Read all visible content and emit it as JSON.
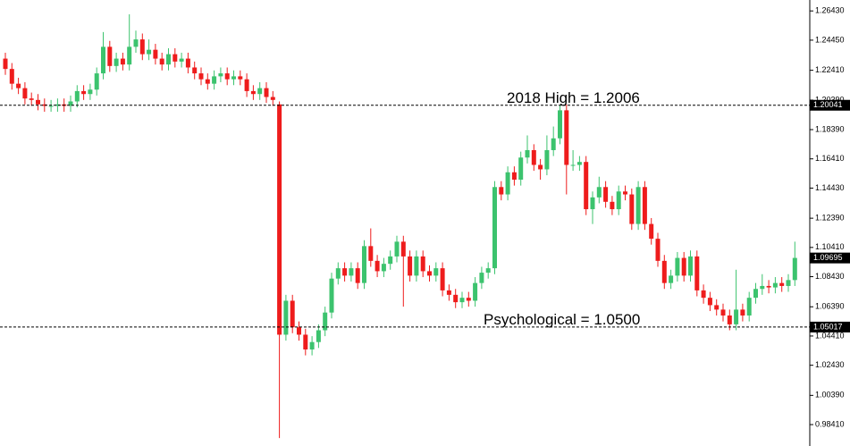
{
  "chart_data": {
    "type": "candlestick",
    "up_color": "#3cc36e",
    "down_color": "#ee1c1c",
    "ylim": [
      0.9696,
      1.2717
    ],
    "yticks": [
      {
        "value": 1.2643,
        "label": "1.26430"
      },
      {
        "value": 1.2445,
        "label": "1.24450"
      },
      {
        "value": 1.2241,
        "label": "1.22410"
      },
      {
        "value": 1.2039,
        "label": "1.20390"
      },
      {
        "value": 1.1839,
        "label": "1.18390"
      },
      {
        "value": 1.1641,
        "label": "1.16410"
      },
      {
        "value": 1.1443,
        "label": "1.14430"
      },
      {
        "value": 1.1239,
        "label": "1.12390"
      },
      {
        "value": 1.1041,
        "label": "1.10410"
      },
      {
        "value": 1.0843,
        "label": "1.08430"
      },
      {
        "value": 1.0639,
        "label": "1.06390"
      },
      {
        "value": 1.0441,
        "label": "1.04410"
      },
      {
        "value": 1.0243,
        "label": "1.02430"
      },
      {
        "value": 1.0039,
        "label": "1.00390"
      },
      {
        "value": 0.9841,
        "label": "0.98410"
      }
    ],
    "price_lines": [
      1.20041,
      1.05017
    ],
    "current_price": 1.09695,
    "annotations": [
      "2018 High = 1.2006",
      "Psychological = 1.0500"
    ],
    "open": [
      1.232,
      1.225,
      1.215,
      1.212,
      1.205,
      1.204,
      1.201,
      1.2,
      1.2,
      1.201,
      1.2,
      1.203,
      1.21,
      1.208,
      1.211,
      1.222,
      1.24,
      1.227,
      1.232,
      1.228,
      1.24,
      1.245,
      1.235,
      1.238,
      1.232,
      1.228,
      1.235,
      1.23,
      1.232,
      1.226,
      1.222,
      1.218,
      1.215,
      1.22,
      1.222,
      1.218,
      1.22,
      1.218,
      1.21,
      1.208,
      1.212,
      1.206,
      1.201,
      1.045,
      1.068,
      1.05,
      1.045,
      1.035,
      1.04,
      1.048,
      1.06,
      1.083,
      1.09,
      1.085,
      1.09,
      1.08,
      1.105,
      1.095,
      1.088,
      1.093,
      1.098,
      1.108,
      1.098,
      1.085,
      1.098,
      1.088,
      1.085,
      1.09,
      1.075,
      1.072,
      1.067,
      1.07,
      1.068,
      1.08,
      1.087,
      1.09,
      1.145,
      1.14,
      1.155,
      1.15,
      1.165,
      1.17,
      1.16,
      1.157,
      1.17,
      1.178,
      1.197,
      1.16,
      1.16,
      1.162,
      1.13,
      1.138,
      1.145,
      1.135,
      1.13,
      1.142,
      1.14,
      1.12,
      1.145,
      1.12,
      1.11,
      1.095,
      1.08,
      1.085,
      1.097,
      1.085,
      1.098,
      1.075,
      1.07,
      1.065,
      1.062,
      1.058,
      1.052,
      1.062,
      1.058,
      1.07,
      1.076,
      1.078,
      1.077,
      1.08,
      1.078,
      1.082
    ],
    "high": [
      1.236,
      1.229,
      1.219,
      1.216,
      1.209,
      1.208,
      1.205,
      1.204,
      1.205,
      1.205,
      1.207,
      1.214,
      1.214,
      1.215,
      1.226,
      1.25,
      1.244,
      1.236,
      1.236,
      1.262,
      1.251,
      1.249,
      1.245,
      1.242,
      1.236,
      1.239,
      1.239,
      1.236,
      1.236,
      1.23,
      1.226,
      1.222,
      1.224,
      1.226,
      1.226,
      1.224,
      1.224,
      1.222,
      1.214,
      1.216,
      1.216,
      1.21,
      1.203,
      1.072,
      1.072,
      1.054,
      1.049,
      1.044,
      1.052,
      1.064,
      1.087,
      1.094,
      1.094,
      1.094,
      1.094,
      1.109,
      1.117,
      1.099,
      1.097,
      1.102,
      1.112,
      1.112,
      1.102,
      1.102,
      1.102,
      1.092,
      1.094,
      1.094,
      1.079,
      1.076,
      1.074,
      1.074,
      1.084,
      1.091,
      1.094,
      1.149,
      1.149,
      1.159,
      1.159,
      1.169,
      1.18,
      1.174,
      1.164,
      1.18,
      1.186,
      1.2006,
      1.201,
      1.17,
      1.166,
      1.166,
      1.142,
      1.152,
      1.149,
      1.139,
      1.146,
      1.146,
      1.144,
      1.149,
      1.149,
      1.124,
      1.114,
      1.099,
      1.089,
      1.101,
      1.101,
      1.102,
      1.102,
      1.079,
      1.074,
      1.069,
      1.066,
      1.062,
      1.089,
      1.066,
      1.074,
      1.08,
      1.086,
      1.082,
      1.084,
      1.084,
      1.086,
      1.108
    ],
    "low": [
      1.221,
      1.211,
      1.208,
      1.201,
      1.2,
      1.197,
      1.196,
      1.196,
      1.196,
      1.196,
      1.196,
      1.199,
      1.204,
      1.204,
      1.207,
      1.218,
      1.223,
      1.223,
      1.224,
      1.224,
      1.236,
      1.231,
      1.231,
      1.228,
      1.224,
      1.224,
      1.226,
      1.226,
      1.222,
      1.218,
      1.214,
      1.211,
      1.211,
      1.216,
      1.214,
      1.214,
      1.214,
      1.206,
      1.204,
      1.204,
      1.202,
      1.2,
      0.975,
      1.041,
      1.046,
      1.041,
      1.031,
      1.031,
      1.036,
      1.044,
      1.056,
      1.079,
      1.081,
      1.081,
      1.076,
      1.076,
      1.091,
      1.084,
      1.084,
      1.089,
      1.094,
      1.064,
      1.081,
      1.081,
      1.084,
      1.081,
      1.081,
      1.071,
      1.068,
      1.063,
      1.063,
      1.064,
      1.064,
      1.076,
      1.083,
      1.086,
      1.136,
      1.136,
      1.146,
      1.146,
      1.161,
      1.156,
      1.15,
      1.153,
      1.166,
      1.174,
      1.14,
      1.156,
      1.156,
      1.126,
      1.12,
      1.134,
      1.131,
      1.126,
      1.126,
      1.136,
      1.116,
      1.116,
      1.116,
      1.106,
      1.091,
      1.076,
      1.076,
      1.081,
      1.081,
      1.081,
      1.071,
      1.066,
      1.061,
      1.058,
      1.054,
      1.048,
      1.048,
      1.054,
      1.054,
      1.066,
      1.072,
      1.073,
      1.073,
      1.074,
      1.074,
      1.078
    ],
    "close": [
      1.225,
      1.215,
      1.212,
      1.205,
      1.204,
      1.201,
      1.2,
      1.2,
      1.201,
      1.2,
      1.203,
      1.21,
      1.208,
      1.211,
      1.222,
      1.24,
      1.227,
      1.232,
      1.228,
      1.24,
      1.245,
      1.235,
      1.238,
      1.232,
      1.228,
      1.235,
      1.23,
      1.232,
      1.226,
      1.222,
      1.218,
      1.215,
      1.22,
      1.222,
      1.218,
      1.22,
      1.218,
      1.21,
      1.208,
      1.212,
      1.206,
      1.204,
      1.045,
      1.068,
      1.05,
      1.045,
      1.035,
      1.04,
      1.048,
      1.06,
      1.083,
      1.09,
      1.085,
      1.09,
      1.08,
      1.105,
      1.095,
      1.088,
      1.093,
      1.098,
      1.108,
      1.098,
      1.085,
      1.098,
      1.088,
      1.085,
      1.09,
      1.075,
      1.072,
      1.067,
      1.07,
      1.068,
      1.08,
      1.087,
      1.09,
      1.145,
      1.14,
      1.155,
      1.15,
      1.165,
      1.17,
      1.16,
      1.157,
      1.17,
      1.178,
      1.197,
      1.16,
      1.16,
      1.162,
      1.13,
      1.138,
      1.145,
      1.135,
      1.13,
      1.142,
      1.14,
      1.12,
      1.145,
      1.12,
      1.11,
      1.095,
      1.08,
      1.085,
      1.097,
      1.085,
      1.098,
      1.075,
      1.07,
      1.065,
      1.062,
      1.058,
      1.052,
      1.062,
      1.058,
      1.07,
      1.076,
      1.078,
      1.077,
      1.08,
      1.078,
      1.082,
      1.097
    ]
  }
}
